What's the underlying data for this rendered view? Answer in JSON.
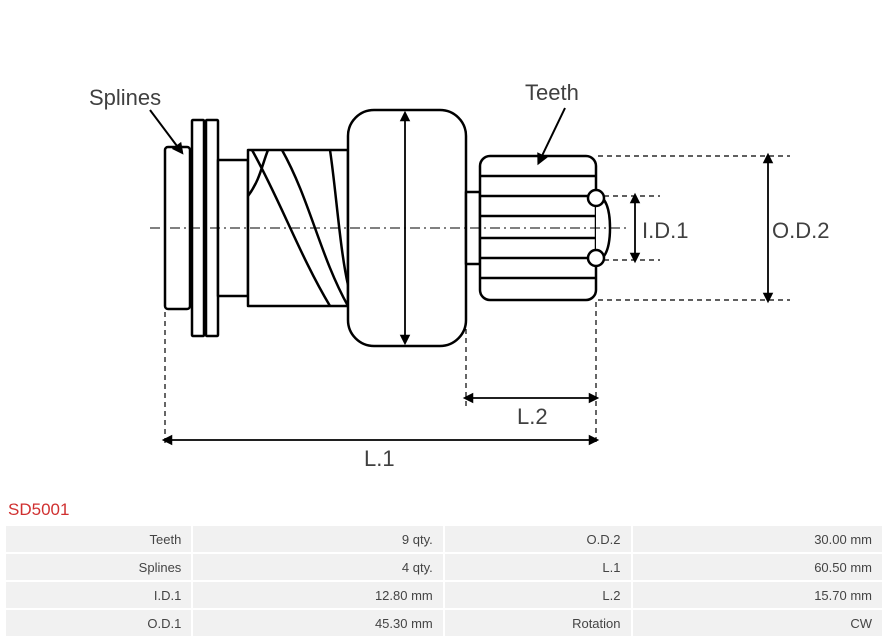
{
  "diagram": {
    "type": "engineering-drawing",
    "background_color": "#ffffff",
    "stroke_color": "#000000",
    "stroke_width_main": 2.5,
    "stroke_width_thin": 1.5,
    "dash_pattern": "5,4",
    "label_color": "#404040",
    "label_fontsize": 22,
    "callouts": {
      "splines": "Splines",
      "teeth": "Teeth"
    },
    "dims": {
      "od1": "O.D.1",
      "od2": "O.D.2",
      "id1": "I.D.1",
      "l1": "L.1",
      "l2": "L.2"
    }
  },
  "part": {
    "code": "SD5001",
    "code_color": "#d03030",
    "code_fontsize": 17
  },
  "table": {
    "bg_color": "#f1f1f1",
    "text_color": "#444444",
    "fontsize": 13,
    "rows": [
      {
        "k1": "Teeth",
        "v1": "9 qty.",
        "k2": "O.D.2",
        "v2": "30.00 mm"
      },
      {
        "k1": "Splines",
        "v1": "4 qty.",
        "k2": "L.1",
        "v2": "60.50 mm"
      },
      {
        "k1": "I.D.1",
        "v1": "12.80 mm",
        "k2": "L.2",
        "v2": "15.70 mm"
      },
      {
        "k1": "O.D.1",
        "v1": "45.30 mm",
        "k2": "Rotation",
        "v2": "CW"
      }
    ]
  }
}
